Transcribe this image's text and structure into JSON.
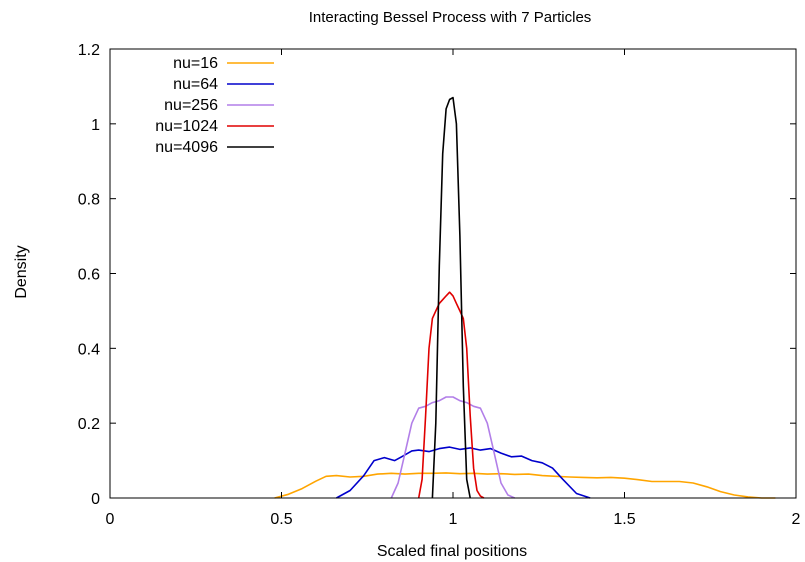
{
  "chart_data": {
    "type": "line",
    "title": "Interacting Bessel Process with 7 Particles",
    "xlabel": "Scaled final positions",
    "ylabel": "Density",
    "xlim": [
      0,
      2
    ],
    "ylim": [
      0,
      1.2
    ],
    "x_ticks": [
      0,
      0.5,
      1,
      1.5,
      2
    ],
    "x_tick_labels": [
      "0",
      "0.5",
      "1",
      "1.5",
      "2"
    ],
    "y_ticks": [
      0,
      0.2,
      0.4,
      0.6,
      0.8,
      1,
      1.2
    ],
    "y_tick_labels": [
      "0",
      "0.2",
      "0.4",
      "0.6",
      "0.8",
      "1",
      "1.2"
    ],
    "grid": false,
    "legend_position": "top-left",
    "series": [
      {
        "name": "nu=16",
        "color": "#FFA500",
        "x": [
          0.48,
          0.52,
          0.56,
          0.6,
          0.63,
          0.66,
          0.7,
          0.74,
          0.78,
          0.82,
          0.86,
          0.9,
          0.94,
          0.98,
          1.02,
          1.06,
          1.1,
          1.14,
          1.18,
          1.22,
          1.26,
          1.3,
          1.34,
          1.38,
          1.42,
          1.46,
          1.5,
          1.54,
          1.58,
          1.62,
          1.66,
          1.7,
          1.74,
          1.78,
          1.82,
          1.86,
          1.9,
          1.94
        ],
        "y": [
          0.0,
          0.01,
          0.025,
          0.045,
          0.058,
          0.06,
          0.056,
          0.058,
          0.064,
          0.066,
          0.064,
          0.066,
          0.066,
          0.067,
          0.065,
          0.066,
          0.064,
          0.065,
          0.063,
          0.064,
          0.06,
          0.058,
          0.056,
          0.055,
          0.054,
          0.055,
          0.053,
          0.049,
          0.044,
          0.044,
          0.044,
          0.04,
          0.03,
          0.017,
          0.008,
          0.003,
          0.0,
          0.0
        ]
      },
      {
        "name": "nu=64",
        "color": "#0000CC",
        "x": [
          0.66,
          0.7,
          0.74,
          0.77,
          0.8,
          0.83,
          0.85,
          0.88,
          0.9,
          0.93,
          0.96,
          0.99,
          1.02,
          1.05,
          1.08,
          1.11,
          1.14,
          1.17,
          1.2,
          1.23,
          1.26,
          1.29,
          1.32,
          1.36,
          1.4
        ],
        "y": [
          0.0,
          0.02,
          0.06,
          0.1,
          0.108,
          0.1,
          0.11,
          0.126,
          0.128,
          0.124,
          0.132,
          0.136,
          0.13,
          0.134,
          0.128,
          0.132,
          0.12,
          0.11,
          0.112,
          0.1,
          0.094,
          0.08,
          0.05,
          0.012,
          0.0
        ]
      },
      {
        "name": "nu=256",
        "color": "#B27FE8",
        "x": [
          0.82,
          0.84,
          0.86,
          0.88,
          0.9,
          0.92,
          0.94,
          0.96,
          0.98,
          1.0,
          1.02,
          1.04,
          1.06,
          1.08,
          1.1,
          1.12,
          1.14,
          1.16,
          1.18
        ],
        "y": [
          0.0,
          0.04,
          0.12,
          0.2,
          0.24,
          0.245,
          0.255,
          0.26,
          0.27,
          0.27,
          0.26,
          0.255,
          0.245,
          0.24,
          0.2,
          0.12,
          0.04,
          0.008,
          0.0
        ]
      },
      {
        "name": "nu=1024",
        "color": "#E00000",
        "x": [
          0.9,
          0.91,
          0.92,
          0.93,
          0.94,
          0.95,
          0.96,
          0.97,
          0.98,
          0.99,
          1.0,
          1.01,
          1.02,
          1.03,
          1.04,
          1.05,
          1.06,
          1.07,
          1.08,
          1.09
        ],
        "y": [
          0.0,
          0.05,
          0.22,
          0.4,
          0.48,
          0.5,
          0.52,
          0.53,
          0.54,
          0.55,
          0.54,
          0.52,
          0.5,
          0.48,
          0.4,
          0.22,
          0.08,
          0.02,
          0.005,
          0.0
        ]
      },
      {
        "name": "nu=4096",
        "color": "#000000",
        "x": [
          0.94,
          0.95,
          0.96,
          0.97,
          0.98,
          0.99,
          1.0,
          1.01,
          1.02,
          1.03,
          1.04,
          1.05
        ],
        "y": [
          0.0,
          0.2,
          0.62,
          0.92,
          1.04,
          1.065,
          1.07,
          1.0,
          0.7,
          0.3,
          0.05,
          0.0
        ]
      }
    ]
  }
}
